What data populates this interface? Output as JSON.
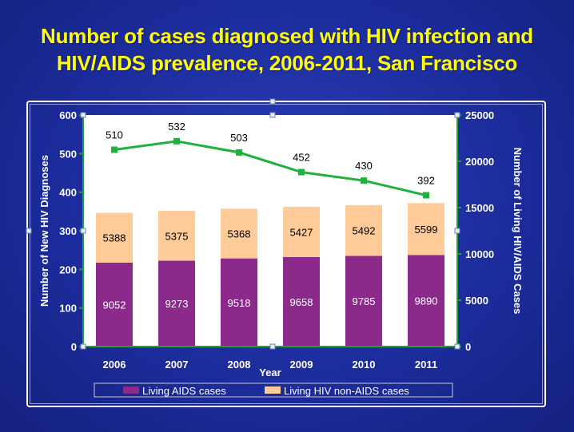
{
  "title_line1": "Number of cases diagnosed with HIV infection and",
  "title_line2": "HIV/AIDS prevalence, 2006-2011, San Francisco",
  "chart_data": {
    "type": "bar",
    "categories": [
      "2006",
      "2007",
      "2008",
      "2009",
      "2010",
      "2011"
    ],
    "series": [
      {
        "name": "Living AIDS cases",
        "axis": "right",
        "stack": "living",
        "values": [
          9052,
          9273,
          9518,
          9658,
          9785,
          9890
        ],
        "color": "#8b2a8a"
      },
      {
        "name": "Living HIV non-AIDS cases",
        "axis": "right",
        "stack": "living",
        "values": [
          5388,
          5375,
          5368,
          5427,
          5492,
          5599
        ],
        "color": "#ffcc99"
      },
      {
        "name": "New HIV diagnoses",
        "type": "line",
        "axis": "left",
        "values": [
          510,
          532,
          503,
          452,
          430,
          392
        ],
        "color": "#1eb13c"
      }
    ],
    "xlabel": "Year",
    "ylabel_left": "Number of New HIV Diagnoses",
    "ylabel_right": "Number of Living HIV/AIDS Cases",
    "ylim_left": [
      0,
      600
    ],
    "ylim_right": [
      0,
      25000
    ],
    "yticks_left": [
      0,
      100,
      200,
      300,
      400,
      500,
      600
    ],
    "yticks_right": [
      0,
      5000,
      10000,
      15000,
      20000,
      25000
    ],
    "legend": [
      "Living AIDS cases",
      "Living HIV non-AIDS cases"
    ],
    "legend_position": "bottom",
    "grid": false
  },
  "colors": {
    "title": "#ffff00",
    "plot_background": "#ffffff",
    "axis": "#1ea03a"
  }
}
